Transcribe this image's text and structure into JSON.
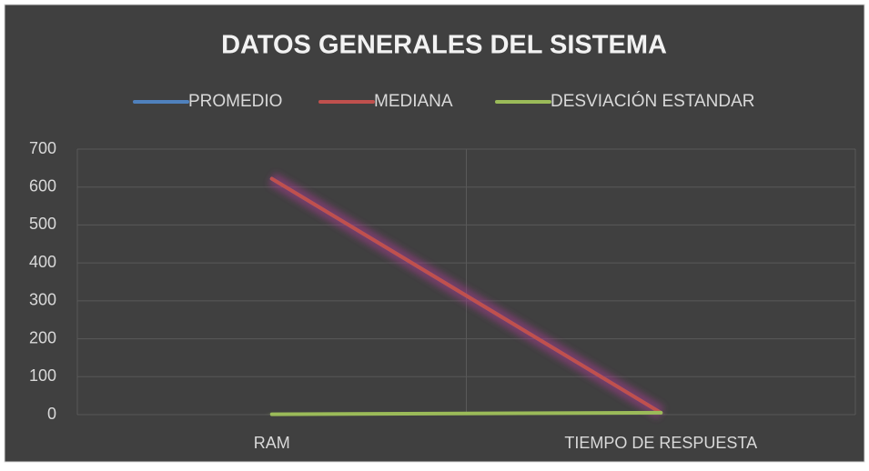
{
  "chart_data": {
    "type": "line",
    "title": "DATOS GENERALES DEL SISTEMA",
    "categories": [
      "RAM",
      "TIEMPO DE RESPUESTA"
    ],
    "series": [
      {
        "name": "PROMEDIO",
        "color": "#4f81bd",
        "values": [
          622,
          5
        ]
      },
      {
        "name": "MEDIANA",
        "color": "#c0504d",
        "values": [
          622,
          5
        ]
      },
      {
        "name": "DESVIACIÓN ESTANDAR",
        "color": "#9bbb59",
        "values": [
          1,
          5
        ]
      }
    ],
    "ylim": [
      0,
      700
    ],
    "yticks": [
      0,
      100,
      200,
      300,
      400,
      500,
      600,
      700
    ],
    "grid": true,
    "legend": "top"
  }
}
